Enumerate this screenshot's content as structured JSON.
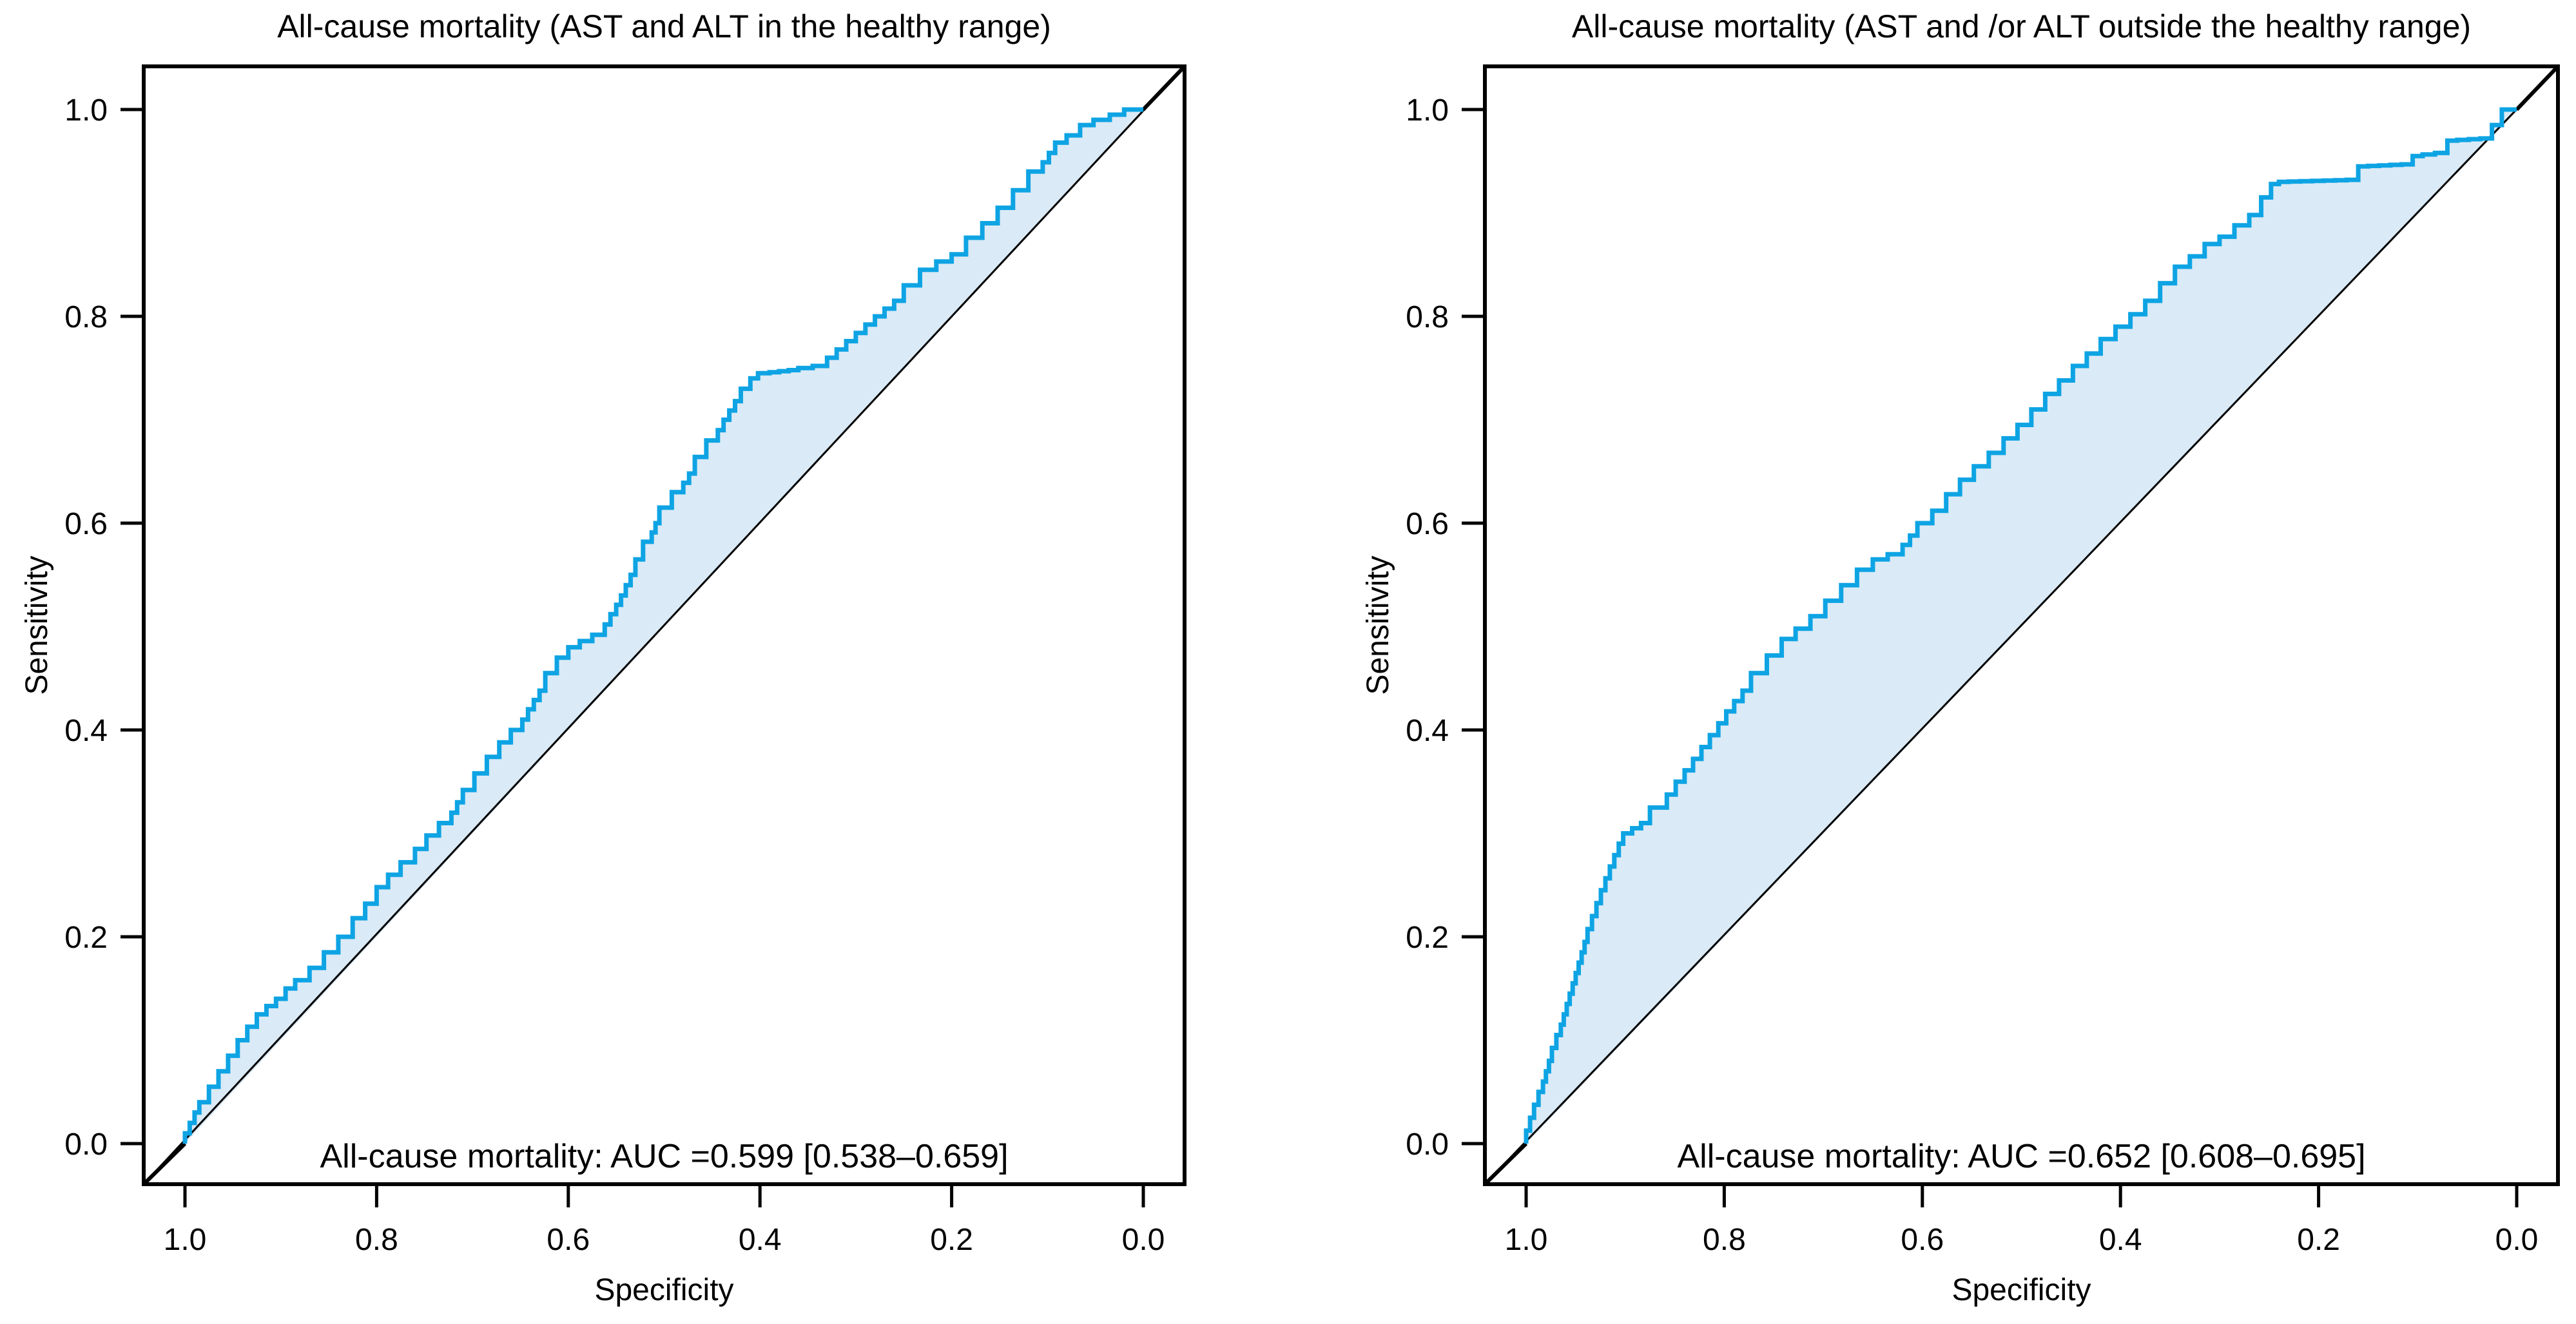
{
  "figure": {
    "background": "#ffffff",
    "curve_color": "#0ea4e4",
    "area_fill_color": "#daeaf6",
    "diagonal_color": "#000000",
    "axis_color": "#000000"
  },
  "chart_data": [
    {
      "type": "line",
      "subtype": "roc-step-curve",
      "title": "All-cause mortality (AST and ALT in the healthy range)",
      "xlabel": "Specificity",
      "ylabel": "Sensitivity",
      "x_axis_reversed": true,
      "xlim": [
        1.0,
        0.0
      ],
      "ylim": [
        0.0,
        1.0
      ],
      "grid": false,
      "x_ticks": [
        1.0,
        0.8,
        0.6,
        0.4,
        0.2,
        0.0
      ],
      "y_ticks": [
        0.0,
        0.2,
        0.4,
        0.6,
        0.8,
        1.0
      ],
      "x_tick_labels": [
        "1.0",
        "0.8",
        "0.6",
        "0.4",
        "0.2",
        "0.0"
      ],
      "y_tick_labels": [
        "0.0",
        "0.2",
        "0.4",
        "0.6",
        "0.8",
        "1.0"
      ],
      "annotation": "All-cause mortality: AUC =0.599 [0.538–0.659]",
      "auc": 0.599,
      "auc_ci": [
        0.538,
        0.659
      ],
      "series": [
        {
          "name": "ROC curve",
          "points_spec_sens": [
            [
              1.0,
              0.0
            ],
            [
              0.995,
              0.01
            ],
            [
              0.99,
              0.02
            ],
            [
              0.985,
              0.03
            ],
            [
              0.975,
              0.04
            ],
            [
              0.965,
              0.055
            ],
            [
              0.955,
              0.07
            ],
            [
              0.945,
              0.085
            ],
            [
              0.935,
              0.1
            ],
            [
              0.925,
              0.113
            ],
            [
              0.915,
              0.125
            ],
            [
              0.905,
              0.133
            ],
            [
              0.895,
              0.14
            ],
            [
              0.885,
              0.15
            ],
            [
              0.87,
              0.158
            ],
            [
              0.855,
              0.17
            ],
            [
              0.84,
              0.185
            ],
            [
              0.825,
              0.2
            ],
            [
              0.812,
              0.218
            ],
            [
              0.8,
              0.232
            ],
            [
              0.788,
              0.248
            ],
            [
              0.775,
              0.26
            ],
            [
              0.76,
              0.272
            ],
            [
              0.748,
              0.285
            ],
            [
              0.735,
              0.298
            ],
            [
              0.722,
              0.31
            ],
            [
              0.71,
              0.33
            ],
            [
              0.698,
              0.342
            ],
            [
              0.685,
              0.358
            ],
            [
              0.672,
              0.374
            ],
            [
              0.66,
              0.388
            ],
            [
              0.648,
              0.4
            ],
            [
              0.636,
              0.42
            ],
            [
              0.624,
              0.438
            ],
            [
              0.612,
              0.455
            ],
            [
              0.6,
              0.47
            ],
            [
              0.588,
              0.48
            ],
            [
              0.575,
              0.486
            ],
            [
              0.562,
              0.492
            ],
            [
              0.55,
              0.512
            ],
            [
              0.54,
              0.53
            ],
            [
              0.53,
              0.55
            ],
            [
              0.522,
              0.565
            ],
            [
              0.513,
              0.582
            ],
            [
              0.505,
              0.6
            ],
            [
              0.492,
              0.615
            ],
            [
              0.48,
              0.63
            ],
            [
              0.468,
              0.648
            ],
            [
              0.456,
              0.664
            ],
            [
              0.444,
              0.68
            ],
            [
              0.432,
              0.7
            ],
            [
              0.42,
              0.718
            ],
            [
              0.41,
              0.73
            ],
            [
              0.402,
              0.74
            ],
            [
              0.39,
              0.745
            ],
            [
              0.36,
              0.748
            ],
            [
              0.33,
              0.752
            ],
            [
              0.31,
              0.768
            ],
            [
              0.29,
              0.784
            ],
            [
              0.27,
              0.8
            ],
            [
              0.25,
              0.815
            ],
            [
              0.233,
              0.83
            ],
            [
              0.216,
              0.845
            ],
            [
              0.2,
              0.853
            ],
            [
              0.185,
              0.86
            ],
            [
              0.168,
              0.876
            ],
            [
              0.152,
              0.89
            ],
            [
              0.136,
              0.905
            ],
            [
              0.12,
              0.922
            ],
            [
              0.105,
              0.94
            ],
            [
              0.092,
              0.958
            ],
            [
              0.08,
              0.968
            ],
            [
              0.066,
              0.975
            ],
            [
              0.052,
              0.985
            ],
            [
              0.035,
              0.99
            ],
            [
              0.02,
              0.995
            ],
            [
              0.008,
              1.0
            ],
            [
              0.0,
              1.0
            ]
          ]
        },
        {
          "name": "chance diagonal",
          "points_spec_sens": [
            [
              1.0,
              0.0
            ],
            [
              0.0,
              1.0
            ]
          ]
        }
      ]
    },
    {
      "type": "line",
      "subtype": "roc-step-curve",
      "title": "All-cause mortality (AST and /or ALT outside the healthy range)",
      "xlabel": "Specificity",
      "ylabel": "Sensitivity",
      "x_axis_reversed": true,
      "xlim": [
        1.0,
        0.0
      ],
      "ylim": [
        0.0,
        1.0
      ],
      "grid": false,
      "x_ticks": [
        1.0,
        0.8,
        0.6,
        0.4,
        0.2,
        0.0
      ],
      "y_ticks": [
        0.0,
        0.2,
        0.4,
        0.6,
        0.8,
        1.0
      ],
      "x_tick_labels": [
        "1.0",
        "0.8",
        "0.6",
        "0.4",
        "0.2",
        "0.0"
      ],
      "y_tick_labels": [
        "0.0",
        "0.2",
        "0.4",
        "0.6",
        "0.8",
        "1.0"
      ],
      "annotation": "All-cause mortality: AUC =0.652 [0.608–0.695]",
      "auc": 0.652,
      "auc_ci": [
        0.608,
        0.695
      ],
      "series": [
        {
          "name": "ROC curve",
          "points_spec_sens": [
            [
              1.0,
              0.0
            ],
            [
              0.992,
              0.025
            ],
            [
              0.983,
              0.05
            ],
            [
              0.974,
              0.08
            ],
            [
              0.965,
              0.105
            ],
            [
              0.956,
              0.135
            ],
            [
              0.947,
              0.165
            ],
            [
              0.938,
              0.195
            ],
            [
              0.929,
              0.22
            ],
            [
              0.92,
              0.245
            ],
            [
              0.911,
              0.268
            ],
            [
              0.902,
              0.29
            ],
            [
              0.893,
              0.3
            ],
            [
              0.875,
              0.31
            ],
            [
              0.858,
              0.325
            ],
            [
              0.84,
              0.35
            ],
            [
              0.823,
              0.372
            ],
            [
              0.806,
              0.395
            ],
            [
              0.79,
              0.418
            ],
            [
              0.773,
              0.438
            ],
            [
              0.757,
              0.455
            ],
            [
              0.742,
              0.472
            ],
            [
              0.728,
              0.488
            ],
            [
              0.713,
              0.498
            ],
            [
              0.698,
              0.51
            ],
            [
              0.682,
              0.525
            ],
            [
              0.666,
              0.54
            ],
            [
              0.65,
              0.555
            ],
            [
              0.635,
              0.565
            ],
            [
              0.62,
              0.57
            ],
            [
              0.605,
              0.588
            ],
            [
              0.59,
              0.6
            ],
            [
              0.576,
              0.612
            ],
            [
              0.562,
              0.628
            ],
            [
              0.548,
              0.642
            ],
            [
              0.533,
              0.655
            ],
            [
              0.518,
              0.668
            ],
            [
              0.504,
              0.682
            ],
            [
              0.49,
              0.695
            ],
            [
              0.476,
              0.71
            ],
            [
              0.462,
              0.725
            ],
            [
              0.448,
              0.738
            ],
            [
              0.434,
              0.752
            ],
            [
              0.42,
              0.764
            ],
            [
              0.405,
              0.778
            ],
            [
              0.39,
              0.79
            ],
            [
              0.375,
              0.802
            ],
            [
              0.36,
              0.815
            ],
            [
              0.345,
              0.832
            ],
            [
              0.33,
              0.848
            ],
            [
              0.315,
              0.858
            ],
            [
              0.3,
              0.87
            ],
            [
              0.285,
              0.877
            ],
            [
              0.27,
              0.888
            ],
            [
              0.258,
              0.898
            ],
            [
              0.248,
              0.915
            ],
            [
              0.24,
              0.928
            ],
            [
              0.23,
              0.93
            ],
            [
              0.16,
              0.932
            ],
            [
              0.15,
              0.945
            ],
            [
              0.105,
              0.947
            ],
            [
              0.095,
              0.955
            ],
            [
              0.07,
              0.958
            ],
            [
              0.06,
              0.97
            ],
            [
              0.025,
              0.972
            ],
            [
              0.015,
              0.985
            ],
            [
              0.008,
              1.0
            ],
            [
              0.0,
              1.0
            ]
          ]
        },
        {
          "name": "chance diagonal",
          "points_spec_sens": [
            [
              1.0,
              0.0
            ],
            [
              0.0,
              1.0
            ]
          ]
        }
      ]
    }
  ]
}
